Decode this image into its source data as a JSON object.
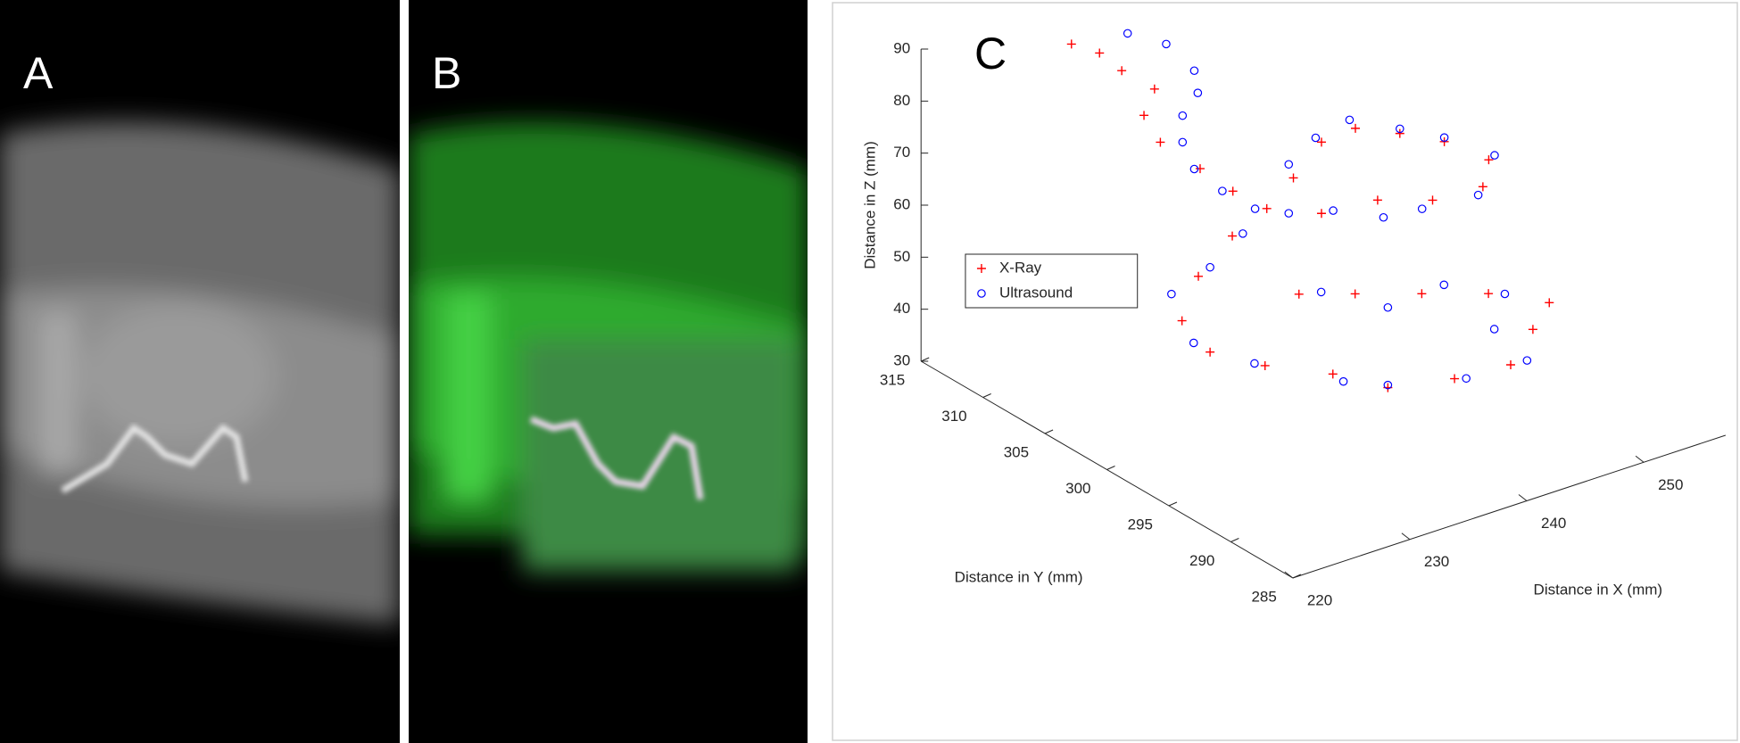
{
  "panel_labels": [
    "A",
    "B"
  ],
  "chart_data": {
    "type": "scatter3d",
    "title": "C",
    "xlabel": "Distance in X (mm)",
    "ylabel": "Distance in Y (mm)",
    "zlabel": "Distance in Z (mm)",
    "xlim": [
      220,
      257
    ],
    "ylim": [
      285,
      315
    ],
    "zlim": [
      30,
      90
    ],
    "xticks": [
      220,
      230,
      240,
      250
    ],
    "yticks": [
      285,
      290,
      295,
      300,
      305,
      310,
      315
    ],
    "zticks": [
      30,
      40,
      50,
      60,
      70,
      80,
      90
    ],
    "legend": "left",
    "series": [
      {
        "name": "X-Ray",
        "color": "#ff0000",
        "marker": "+",
        "x": [
          231.8,
          234.2,
          236.1,
          238.9,
          238.0,
          239.4,
          242.8,
          245.6,
          248.5,
          242.3,
          244.7,
          247.6,
          251.4,
          255.2,
          259.0,
          258.5,
          254.2,
          249.5,
          244.7,
          228.6,
          225.7,
          224.3,
          226.7,
          231.4,
          237.2,
          241.9,
          247.6,
          252.4,
          254.3,
          255.7,
          250.5,
          244.8,
          239.1,
          234.3
        ],
        "y": [
          314,
          314,
          314,
          314,
          314,
          314,
          314,
          314,
          314,
          306,
          306,
          306,
          306,
          306,
          306,
          306,
          306,
          306,
          306,
          298,
          298,
          298,
          298,
          298,
          298,
          298,
          298,
          298,
          298,
          298,
          298,
          298,
          298,
          298
        ],
        "z": [
          83.6,
          80.1,
          75.3,
          69.7,
          65.3,
          59.1,
          51.5,
          45.1,
          39.6,
          61.2,
          66.3,
          66.8,
          63.0,
          58.6,
          52.3,
          47.5,
          48.1,
          51.6,
          52.6,
          71.3,
          65.7,
          58.2,
          50.4,
          44.3,
          38.4,
          32.3,
          29.8,
          28.9,
          34.3,
          38.4,
          44.0,
          48.2,
          52.4,
          55.9
        ]
      },
      {
        "name": "Ultrasound",
        "color": "#0000ff",
        "marker": "o",
        "x": [
          236.6,
          239.9,
          242.3,
          242.6,
          241.3,
          241.3,
          242.3,
          244.7,
          247.5,
          241.9,
          244.2,
          247.1,
          251.4,
          255.2,
          259.5,
          258.1,
          253.3,
          250.0,
          245.7,
          241.9,
          229.5,
          226.7,
          223.4,
          225.3,
          230.5,
          238.1,
          241.9,
          248.6,
          253.8,
          251.0,
          251.9,
          246.7,
          241.9,
          236.2
        ],
        "y": [
          314,
          314,
          314,
          314,
          314,
          314,
          314,
          314,
          314,
          306,
          306,
          306,
          306,
          306,
          306,
          306,
          306,
          306,
          306,
          306,
          298,
          298,
          298,
          298,
          298,
          298,
          298,
          298,
          298,
          298,
          298,
          298,
          298,
          298
        ],
        "z": [
          82.1,
          77.6,
          70.7,
          66.2,
          62.8,
          57.7,
          51.8,
          45.8,
          40.3,
          64.1,
          67.5,
          68.8,
          63.9,
          59.4,
          52.8,
          46.2,
          47.1,
          47.9,
          52.4,
          54.7,
          71.1,
          66.7,
          64.0,
          53.2,
          45.4,
          36.3,
          32.8,
          29.1,
          28.7,
          36.8,
          42.9,
          48.5,
          47.7,
          54.9
        ]
      }
    ]
  }
}
